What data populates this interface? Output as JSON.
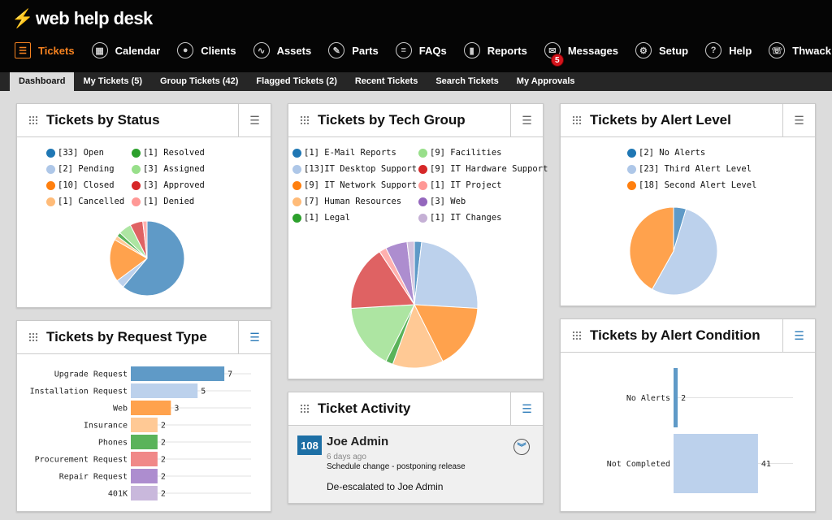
{
  "app": {
    "logo": "web help desk"
  },
  "nav": [
    {
      "label": "Tickets",
      "icon": "list-icon",
      "active": true
    },
    {
      "label": "Calendar",
      "icon": "calendar-icon"
    },
    {
      "label": "Clients",
      "icon": "user-icon"
    },
    {
      "label": "Assets",
      "icon": "monitor-icon"
    },
    {
      "label": "Parts",
      "icon": "wrench-icon"
    },
    {
      "label": "FAQs",
      "icon": "faq-list-icon"
    },
    {
      "label": "Reports",
      "icon": "report-icon"
    },
    {
      "label": "Messages",
      "icon": "envelope-icon",
      "badge": "5"
    },
    {
      "label": "Setup",
      "icon": "gear-icon"
    },
    {
      "label": "Help",
      "icon": "help-icon"
    },
    {
      "label": "Thwack",
      "icon": "thwack-icon"
    }
  ],
  "subnav": [
    {
      "label": "Dashboard",
      "active": true
    },
    {
      "label": "My Tickets (5)"
    },
    {
      "label": "Group Tickets (42)"
    },
    {
      "label": "Flagged Tickets (2)"
    },
    {
      "label": "Recent Tickets"
    },
    {
      "label": "Search Tickets"
    },
    {
      "label": "My Approvals"
    }
  ],
  "panels": {
    "status": "Tickets by Status",
    "tech": "Tickets by Tech Group",
    "alert_level": "Tickets by Alert Level",
    "request": "Tickets by Request Type",
    "activity": "Ticket Activity",
    "alert_condition": "Tickets by Alert Condition"
  },
  "activity": {
    "ticket": "108",
    "name": "Joe Admin",
    "time": "6 days ago",
    "subject": "Schedule change - postponing release",
    "note": "De-escalated to Joe Admin"
  },
  "chart_data": [
    {
      "id": "status",
      "type": "pie",
      "title": "Tickets by Status",
      "slices": [
        {
          "label": "[33] Open",
          "value": 33,
          "color": "#1f77b4",
          "fill": "#5f9ac7"
        },
        {
          "label": "[2] Pending",
          "value": 2,
          "color": "#aec7e8",
          "fill": "#bcd1ec"
        },
        {
          "label": "[10] Closed",
          "value": 10,
          "color": "#ff7f0e",
          "fill": "#ffa24d"
        },
        {
          "label": "[1] Cancelled",
          "value": 1,
          "color": "#ffbb78",
          "fill": "#ffc995"
        },
        {
          "label": "[1] Resolved",
          "value": 1,
          "color": "#2ca02c",
          "fill": "#5ab35a"
        },
        {
          "label": "[3] Assigned",
          "value": 3,
          "color": "#98df8a",
          "fill": "#ade5a2"
        },
        {
          "label": "[3] Approved",
          "value": 3,
          "color": "#d62728",
          "fill": "#df6263"
        },
        {
          "label": "[1] Denied",
          "value": 1,
          "color": "#ff9896",
          "fill": "#ffb0ae"
        }
      ]
    },
    {
      "id": "tech",
      "type": "pie",
      "title": "Tickets by Tech Group",
      "slices": [
        {
          "label": "[1] E-Mail Reports",
          "value": 1,
          "color": "#1f77b4",
          "fill": "#5f9ac7"
        },
        {
          "label": "[13]IT Desktop Support",
          "value": 13,
          "color": "#aec7e8",
          "fill": "#bcd1ec"
        },
        {
          "label": "[9] IT Network Support",
          "value": 9,
          "color": "#ff7f0e",
          "fill": "#ffa24d"
        },
        {
          "label": "[7] Human Resources",
          "value": 7,
          "color": "#ffbb78",
          "fill": "#ffc995"
        },
        {
          "label": "[1] Legal",
          "value": 1,
          "color": "#2ca02c",
          "fill": "#5ab35a"
        },
        {
          "label": "[9] Facilities",
          "value": 9,
          "color": "#98df8a",
          "fill": "#ade5a2"
        },
        {
          "label": "[9] IT Hardware Support",
          "value": 9,
          "color": "#d62728",
          "fill": "#df6263"
        },
        {
          "label": "[1] IT Project",
          "value": 1,
          "color": "#ff9896",
          "fill": "#ffb0ae"
        },
        {
          "label": "[3] Web",
          "value": 3,
          "color": "#9467bd",
          "fill": "#ad8dcf"
        },
        {
          "label": "[1] IT Changes",
          "value": 1,
          "color": "#c5b0d5",
          "fill": "#d2c2de"
        }
      ]
    },
    {
      "id": "alert_level",
      "type": "pie",
      "title": "Tickets by Alert Level",
      "slices": [
        {
          "label": "[2] No Alerts",
          "value": 2,
          "color": "#1f77b4",
          "fill": "#5f9ac7"
        },
        {
          "label": "[23] Third Alert Level",
          "value": 23,
          "color": "#aec7e8",
          "fill": "#bcd1ec"
        },
        {
          "label": "[18] Second Alert Level",
          "value": 18,
          "color": "#ff7f0e",
          "fill": "#ffa24d"
        }
      ]
    },
    {
      "id": "request",
      "type": "bar",
      "orientation": "horizontal",
      "title": "Tickets by Request Type",
      "xlim": [
        0,
        9
      ],
      "categories": [
        "Upgrade Request",
        "Installation Request",
        "Web",
        "Insurance",
        "Phones",
        "Procurement Request",
        "Repair Request",
        "401K"
      ],
      "values": [
        7,
        5,
        3,
        2,
        2,
        2,
        2,
        2
      ],
      "colors": [
        "#5f9ac7",
        "#bcd1ec",
        "#ffa24d",
        "#ffc995",
        "#5ab35a",
        "#f08888",
        "#ad8dcf",
        "#c9b8dc"
      ]
    },
    {
      "id": "alert_condition",
      "type": "bar",
      "orientation": "horizontal",
      "title": "Tickets by Alert Condition",
      "xlim": [
        0,
        58
      ],
      "categories": [
        "No Alerts",
        "Not Completed"
      ],
      "values": [
        2,
        41
      ],
      "colors": [
        "#5f9ac7",
        "#bcd1ec"
      ]
    }
  ]
}
